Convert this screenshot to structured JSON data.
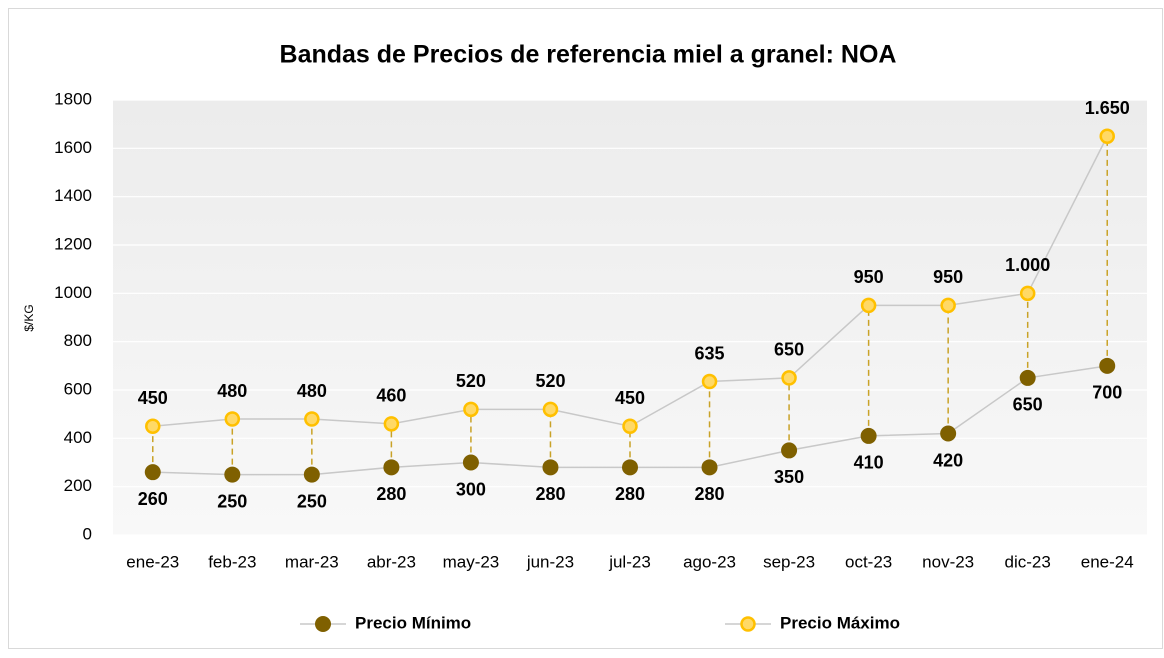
{
  "chart_data": {
    "type": "line",
    "title": "Bandas de Precios de referencia miel a granel: NOA",
    "y_label": "$/KG",
    "categories": [
      "ene-23",
      "feb-23",
      "mar-23",
      "abr-23",
      "may-23",
      "jun-23",
      "jul-23",
      "ago-23",
      "sep-23",
      "oct-23",
      "nov-23",
      "dic-23",
      "ene-24"
    ],
    "series": [
      {
        "name": "Precio Mínimo",
        "color": "#7f6000",
        "values": [
          260,
          250,
          250,
          280,
          300,
          280,
          280,
          280,
          350,
          410,
          420,
          650,
          700
        ]
      },
      {
        "name": "Precio Máximo",
        "color": "#ffd966",
        "values": [
          450,
          480,
          480,
          460,
          520,
          520,
          450,
          635,
          650,
          950,
          950,
          1000,
          1650
        ],
        "value_labels": [
          "450",
          "480",
          "480",
          "460",
          "520",
          "520",
          "450",
          "635",
          "650",
          "950",
          "950",
          "1.000",
          "1.650"
        ]
      }
    ],
    "ylim": [
      0,
      1800
    ],
    "yticks": [
      0,
      200,
      400,
      600,
      800,
      1000,
      1200,
      1400,
      1600,
      1800
    ],
    "grid": true,
    "legend": "bottom"
  }
}
